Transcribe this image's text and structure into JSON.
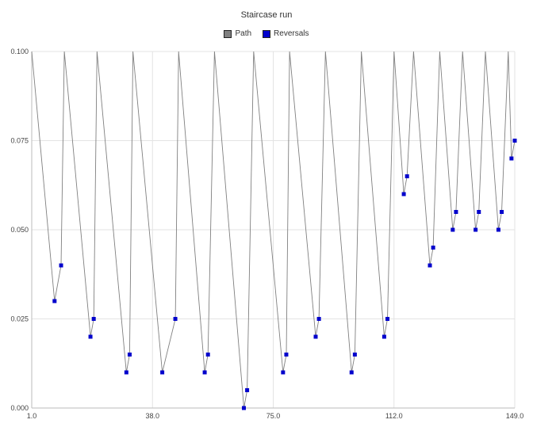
{
  "chart_data": {
    "type": "line",
    "title": "Staircase run",
    "xlabel": "",
    "ylabel": "",
    "xlim": [
      1.0,
      149.0
    ],
    "ylim": [
      0.0,
      0.1
    ],
    "xticks": [
      "1.0",
      "38.0",
      "75.0",
      "112.0",
      "149.0"
    ],
    "xtick_values": [
      1,
      38,
      75,
      112,
      149
    ],
    "yticks": [
      "0.000",
      "0.025",
      "0.050",
      "0.075",
      "0.100"
    ],
    "ytick_values": [
      0,
      0.025,
      0.05,
      0.075,
      0.1
    ],
    "grid": true,
    "legend_position": "top-center",
    "series": [
      {
        "name": "Path",
        "color": "#808080",
        "points": [
          [
            1,
            0.1
          ],
          [
            8,
            0.03
          ],
          [
            10,
            0.04
          ],
          [
            11,
            0.1
          ],
          [
            19,
            0.02
          ],
          [
            20,
            0.025
          ],
          [
            21,
            0.1
          ],
          [
            30,
            0.01
          ],
          [
            31,
            0.015
          ],
          [
            32,
            0.1
          ],
          [
            41,
            0.01
          ],
          [
            45,
            0.025
          ],
          [
            46,
            0.1
          ],
          [
            54,
            0.01
          ],
          [
            55,
            0.015
          ],
          [
            57,
            0.1
          ],
          [
            66,
            0.0
          ],
          [
            67,
            0.005
          ],
          [
            69,
            0.1
          ],
          [
            78,
            0.01
          ],
          [
            79,
            0.015
          ],
          [
            80,
            0.1
          ],
          [
            88,
            0.02
          ],
          [
            89,
            0.025
          ],
          [
            91,
            0.1
          ],
          [
            99,
            0.01
          ],
          [
            100,
            0.015
          ],
          [
            102,
            0.1
          ],
          [
            109,
            0.02
          ],
          [
            110,
            0.025
          ],
          [
            112,
            0.1
          ],
          [
            115,
            0.06
          ],
          [
            116,
            0.065
          ],
          [
            118,
            0.1
          ],
          [
            123,
            0.04
          ],
          [
            124,
            0.045
          ],
          [
            126,
            0.1
          ],
          [
            130,
            0.05
          ],
          [
            131,
            0.055
          ],
          [
            133,
            0.1
          ],
          [
            137,
            0.05
          ],
          [
            138,
            0.055
          ],
          [
            140,
            0.1
          ],
          [
            144,
            0.05
          ],
          [
            145,
            0.055
          ],
          [
            147,
            0.1
          ],
          [
            148,
            0.07
          ],
          [
            149,
            0.075
          ]
        ]
      },
      {
        "name": "Reversals",
        "color": "#0000cc",
        "points": [
          [
            8,
            0.03
          ],
          [
            10,
            0.04
          ],
          [
            19,
            0.02
          ],
          [
            20,
            0.025
          ],
          [
            30,
            0.01
          ],
          [
            31,
            0.015
          ],
          [
            41,
            0.01
          ],
          [
            45,
            0.025
          ],
          [
            54,
            0.01
          ],
          [
            55,
            0.015
          ],
          [
            66,
            0.0
          ],
          [
            67,
            0.005
          ],
          [
            78,
            0.01
          ],
          [
            79,
            0.015
          ],
          [
            88,
            0.02
          ],
          [
            89,
            0.025
          ],
          [
            99,
            0.01
          ],
          [
            100,
            0.015
          ],
          [
            109,
            0.02
          ],
          [
            110,
            0.025
          ],
          [
            115,
            0.06
          ],
          [
            116,
            0.065
          ],
          [
            123,
            0.04
          ],
          [
            124,
            0.045
          ],
          [
            130,
            0.05
          ],
          [
            131,
            0.055
          ],
          [
            137,
            0.05
          ],
          [
            138,
            0.055
          ],
          [
            144,
            0.05
          ],
          [
            145,
            0.055
          ],
          [
            148,
            0.07
          ],
          [
            149,
            0.075
          ]
        ]
      }
    ]
  }
}
